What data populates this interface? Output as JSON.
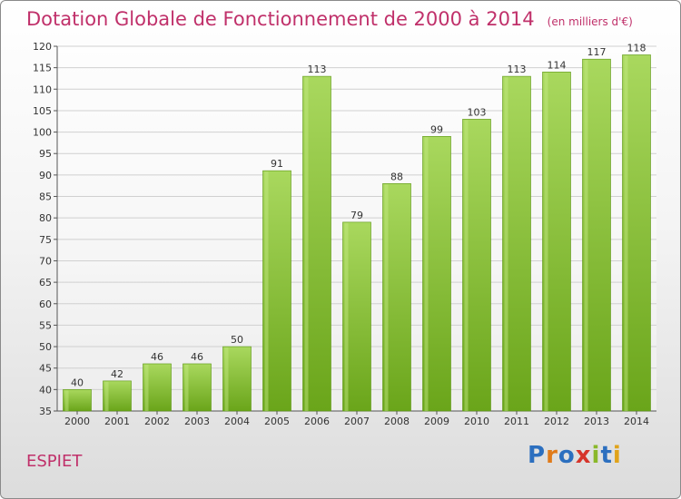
{
  "header": {
    "title": "Dotation Globale de Fonctionnement de 2000 à 2014",
    "unit": "(en milliers d'€)"
  },
  "footer": {
    "commune": "ESPIET",
    "brand": "Proxiti",
    "brand_colors": [
      "#2c6fbf",
      "#e07b1a",
      "#2c6fbf",
      "#d6352b",
      "#8ab82a",
      "#2c6fbf",
      "#e0a31a"
    ]
  },
  "colors": {
    "bar_light": "#a6d659",
    "bar_dark": "#5f9e12",
    "title": "#c0306a"
  },
  "chart_data": {
    "type": "bar",
    "categories": [
      "2000",
      "2001",
      "2002",
      "2003",
      "2004",
      "2005",
      "2006",
      "2007",
      "2008",
      "2009",
      "2010",
      "2011",
      "2012",
      "2013",
      "2014"
    ],
    "values": [
      40,
      42,
      46,
      46,
      50,
      91,
      113,
      79,
      88,
      99,
      103,
      113,
      114,
      117,
      118
    ],
    "ylim": [
      35,
      120
    ],
    "yticks": [
      35,
      40,
      45,
      50,
      55,
      60,
      65,
      70,
      75,
      80,
      85,
      90,
      95,
      100,
      105,
      110,
      115,
      120
    ],
    "grid": true
  }
}
